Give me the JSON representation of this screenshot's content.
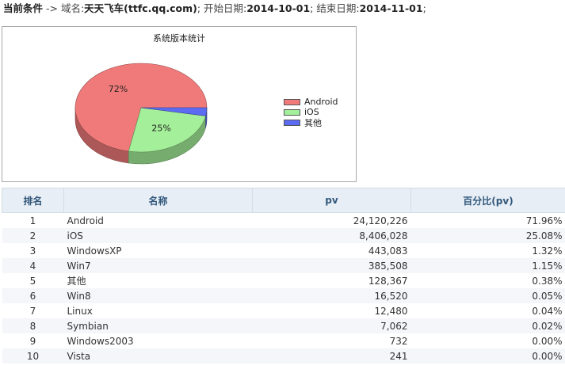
{
  "conditions": {
    "label": "当前条件",
    "arrow": " -> ",
    "domain_label": "域名:",
    "domain_value": "天天飞车(ttfc.qq.com)",
    "sep1": "; ",
    "start_label": "开始日期:",
    "start_value": "2014-10-01",
    "sep2": "; ",
    "end_label": "结束日期:",
    "end_value": "2014-11-01",
    "sep3": ";"
  },
  "chart_data": {
    "type": "pie",
    "title": "系统版本统计",
    "slices": [
      {
        "label": "Android",
        "value": 71.96,
        "display": "72%",
        "color": "#f07a7a"
      },
      {
        "label": "iOS",
        "value": 25.08,
        "display": "25%",
        "color": "#a4ef99"
      },
      {
        "label": "其他",
        "value": 2.96,
        "display": "",
        "color": "#5c6cf2"
      }
    ],
    "legend_position": "right"
  },
  "table": {
    "headers": [
      "排名",
      "名称",
      "pv",
      "百分比(pv)"
    ],
    "rows": [
      [
        "1",
        "Android",
        "24,120,226",
        "71.96%"
      ],
      [
        "2",
        "iOS",
        "8,406,028",
        "25.08%"
      ],
      [
        "3",
        "WindowsXP",
        "443,083",
        "1.32%"
      ],
      [
        "4",
        "Win7",
        "385,508",
        "1.15%"
      ],
      [
        "5",
        "其他",
        "128,367",
        "0.38%"
      ],
      [
        "6",
        "Win8",
        "16,520",
        "0.05%"
      ],
      [
        "7",
        "Linux",
        "12,480",
        "0.04%"
      ],
      [
        "8",
        "Symbian",
        "7,062",
        "0.02%"
      ],
      [
        "9",
        "Windows2003",
        "732",
        "0.00%"
      ],
      [
        "10",
        "Vista",
        "241",
        "0.00%"
      ]
    ]
  }
}
